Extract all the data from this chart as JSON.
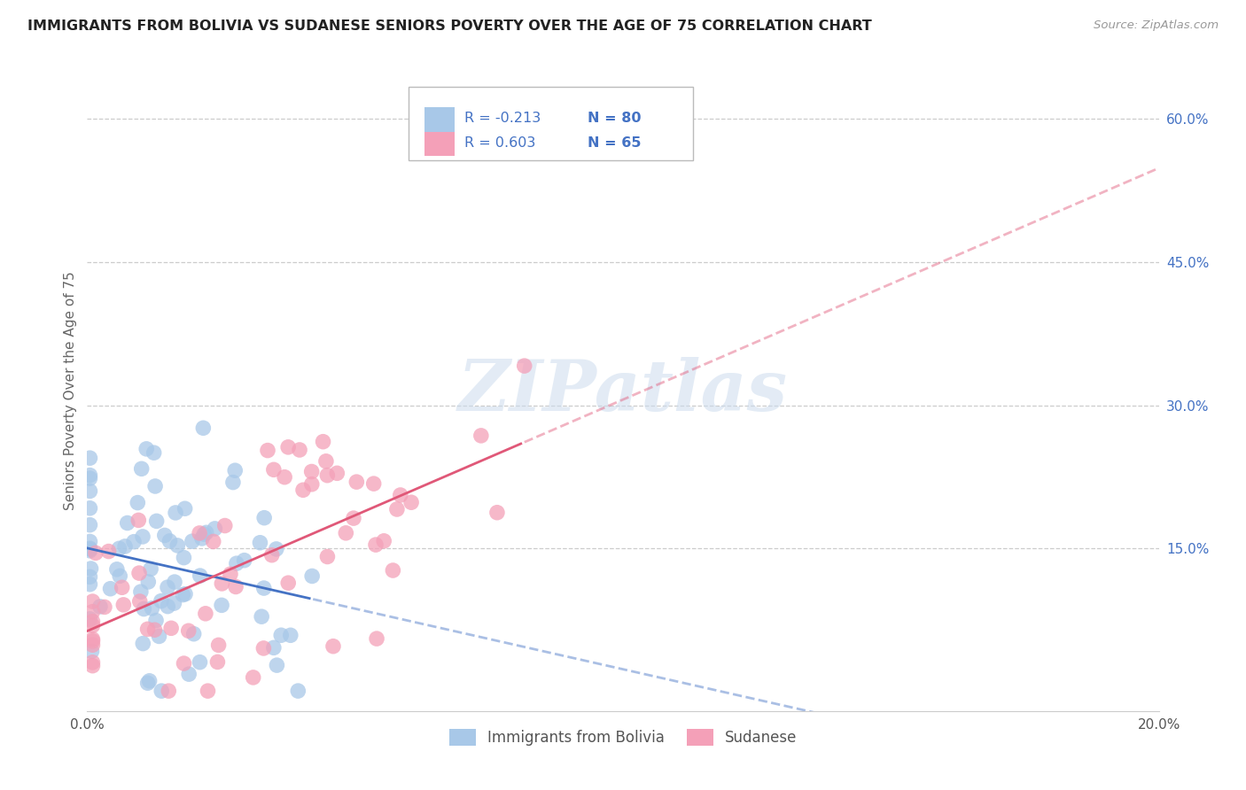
{
  "title": "IMMIGRANTS FROM BOLIVIA VS SUDANESE SENIORS POVERTY OVER THE AGE OF 75 CORRELATION CHART",
  "source": "Source: ZipAtlas.com",
  "ylabel": "Seniors Poverty Over the Age of 75",
  "xlim": [
    0.0,
    0.2
  ],
  "ylim": [
    -0.02,
    0.65
  ],
  "x_ticks": [
    0.0,
    0.05,
    0.1,
    0.15,
    0.2
  ],
  "x_tick_labels": [
    "0.0%",
    "",
    "",
    "",
    "20.0%"
  ],
  "y_ticks_right": [
    0.15,
    0.3,
    0.45,
    0.6
  ],
  "y_tick_labels_right": [
    "15.0%",
    "30.0%",
    "45.0%",
    "60.0%"
  ],
  "bolivia_color": "#a8c8e8",
  "sudanese_color": "#f4a0b8",
  "bolivia_line_color": "#4472c4",
  "sudanese_line_color": "#e05878",
  "bolivia_R": -0.213,
  "bolivia_N": 80,
  "sudanese_R": 0.603,
  "sudanese_N": 65,
  "watermark": "ZIPatlas",
  "background_color": "#ffffff",
  "grid_color": "#cccccc",
  "legend_labels": [
    "Immigrants from Bolivia",
    "Sudanese"
  ],
  "title_color": "#222222",
  "axis_label_color": "#666666",
  "right_tick_color": "#4472c4",
  "source_color": "#999999"
}
